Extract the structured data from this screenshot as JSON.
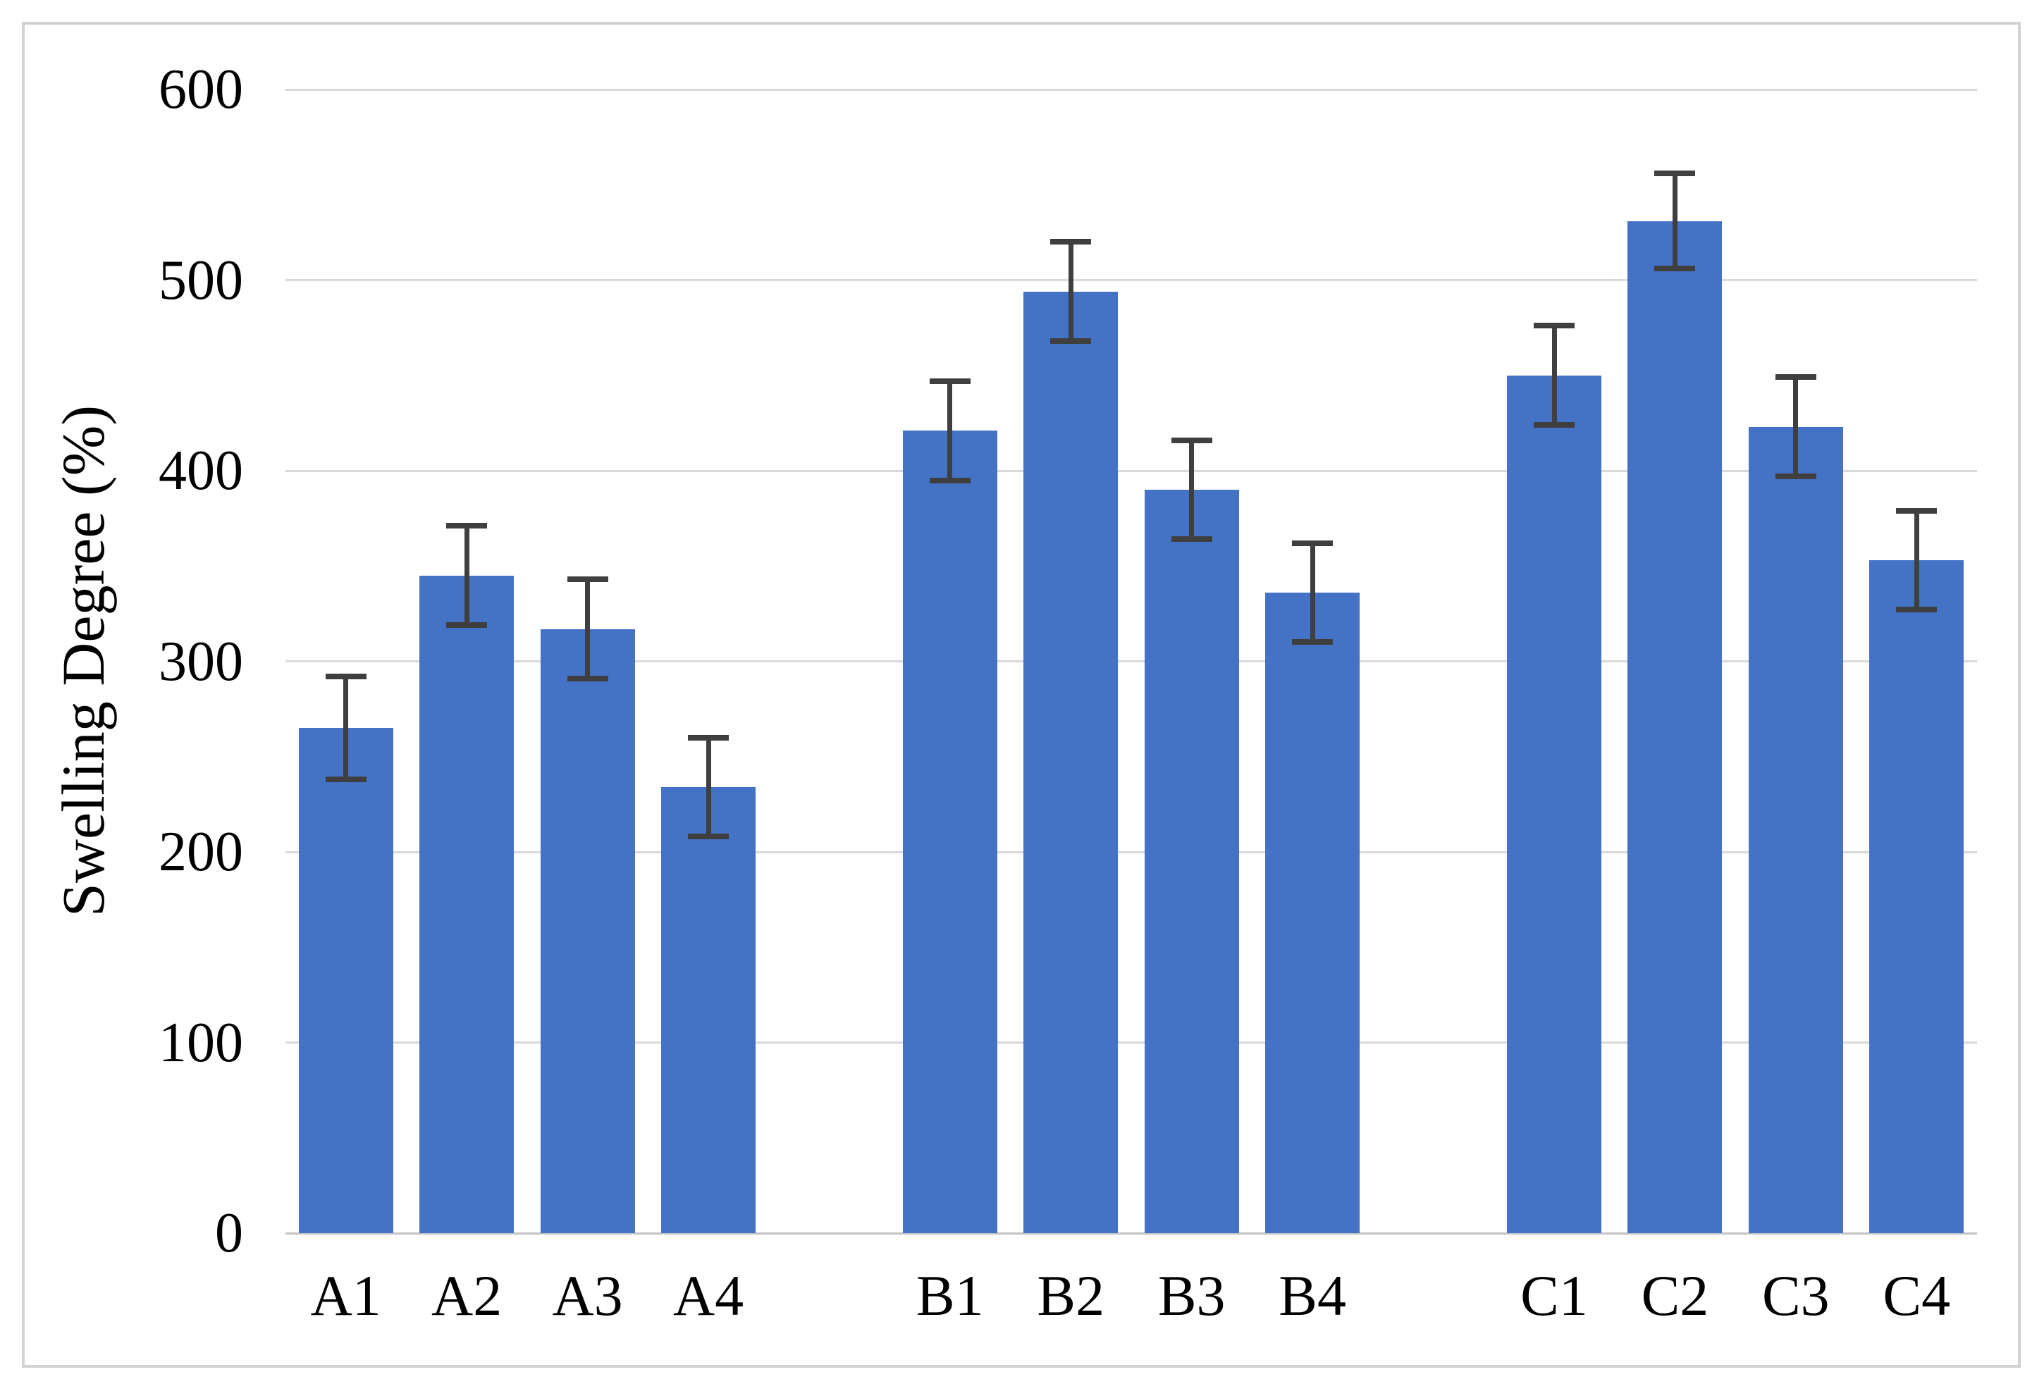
{
  "chart": {
    "y_axis_title": "Swelling Degree (%)"
  },
  "chart_data": {
    "type": "bar",
    "title": "",
    "xlabel": "",
    "ylabel": "Swelling Degree (%)",
    "ylim": [
      0,
      600
    ],
    "ytick_interval": 100,
    "yticks": [
      0,
      100,
      200,
      300,
      400,
      500,
      600
    ],
    "grid": "horizontal",
    "legend_position": "none",
    "bar_color": "#4472C4",
    "error_bar_color": "#3F3F3F",
    "gridline_color": "#D9D9D9",
    "axis_line_color": "#C3C3C3",
    "categories": [
      "A1",
      "A2",
      "A3",
      "A4",
      "B1",
      "B2",
      "B3",
      "B4",
      "C1",
      "C2",
      "C3",
      "C4"
    ],
    "values": [
      265,
      345,
      317,
      234,
      421,
      494,
      390,
      336,
      450,
      531,
      423,
      353
    ],
    "errors": [
      27,
      26,
      26,
      26,
      26,
      26,
      26,
      26,
      26,
      25,
      26,
      26
    ],
    "groups": [
      [
        "A1",
        "A2",
        "A3",
        "A4"
      ],
      [
        "B1",
        "B2",
        "B3",
        "B4"
      ],
      [
        "C1",
        "C2",
        "C3",
        "C4"
      ]
    ],
    "group_gap_slots": 1
  }
}
